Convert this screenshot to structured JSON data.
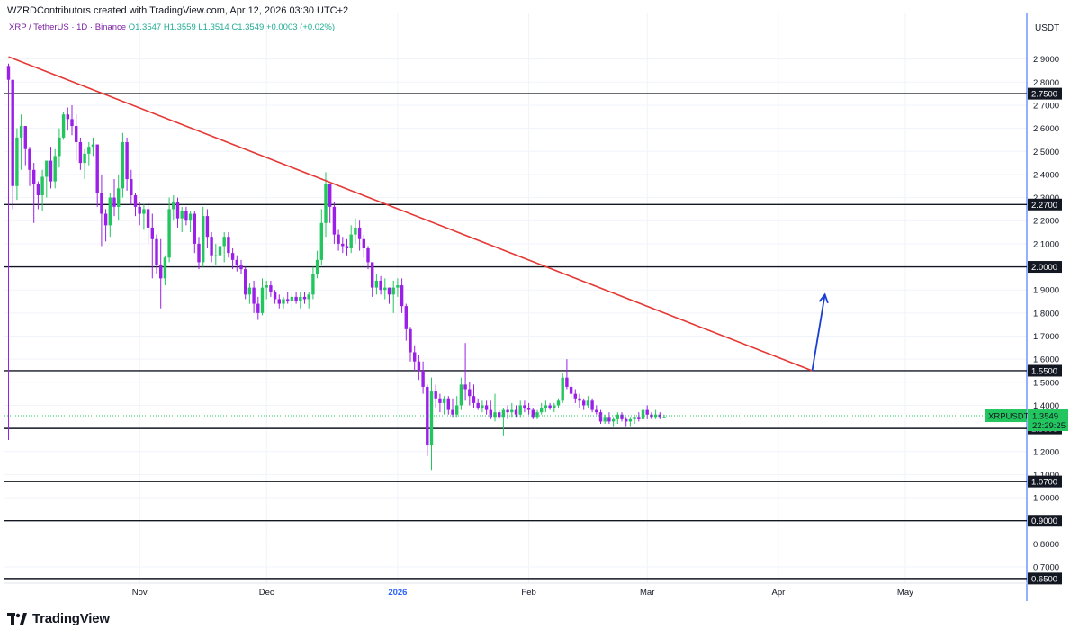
{
  "header": {
    "credit": "WZRDContributors created with TradingView.com, Apr 12, 2026 03:30 UTC+2"
  },
  "legend": {
    "symbol": "XRP / TetherUS · 1D · Binance",
    "open": "O1.3547",
    "high": "H1.3559",
    "low": "L1.3514",
    "close": "C1.3549",
    "change": "+0.0003 (+0.02%)"
  },
  "price_scale": {
    "currency": "USDT"
  },
  "brand": {
    "name": "TradingView",
    "icon": "tradingview-logo-icon"
  },
  "colors": {
    "up": "#22c55e",
    "down": "#9b1fe8",
    "trendline": "#e53935",
    "arrow": "#1a3fd0",
    "level": "#131722",
    "current_tag": "#22c55e"
  },
  "chart_data": {
    "type": "candlestick",
    "symbol": "XRPUSDT",
    "timeframe": "1D",
    "ylim": [
      0.63,
      3.0
    ],
    "y_ticks": [
      "0.7000",
      "0.8000",
      "0.9000",
      "1.0000",
      "1.1000",
      "1.2000",
      "1.3000",
      "1.4000",
      "1.5000",
      "1.6000",
      "1.7000",
      "1.8000",
      "1.9000",
      "2.0000",
      "2.1000",
      "2.2000",
      "2.3000",
      "2.4000",
      "2.5000",
      "2.6000",
      "2.7000",
      "2.8000",
      "2.9000"
    ],
    "x_ticks": [
      {
        "label": "Nov",
        "day": 31
      },
      {
        "label": "Dec",
        "day": 61
      },
      {
        "label": "2026",
        "day": 92
      },
      {
        "label": "Feb",
        "day": 123
      },
      {
        "label": "Mar",
        "day": 151
      },
      {
        "label": "Apr",
        "day": 182
      },
      {
        "label": "May",
        "day": 212
      }
    ],
    "horizontal_levels": [
      "2.7500",
      "2.2700",
      "2.0000",
      "1.5500",
      "1.3000",
      "1.0700",
      "0.9000",
      "0.6500"
    ],
    "current_price": {
      "label": "XRPUSDT",
      "value": "1.3549",
      "countdown": "22:29:25"
    },
    "trendline": {
      "from": {
        "day": 0,
        "price": 2.91
      },
      "to": {
        "day": 190,
        "price": 1.55
      }
    },
    "projection_arrow": {
      "from": {
        "day": 190,
        "price": 1.55
      },
      "to": {
        "day": 193,
        "price": 1.88
      }
    },
    "candles": [
      [
        2.87,
        2.88,
        1.25,
        2.81
      ],
      [
        2.81,
        2.81,
        2.25,
        2.35
      ],
      [
        2.35,
        2.6,
        2.29,
        2.56
      ],
      [
        2.56,
        2.66,
        2.42,
        2.61
      ],
      [
        2.61,
        2.61,
        2.44,
        2.51
      ],
      [
        2.51,
        2.52,
        2.35,
        2.42
      ],
      [
        2.42,
        2.45,
        2.19,
        2.36
      ],
      [
        2.36,
        2.37,
        2.25,
        2.31
      ],
      [
        2.31,
        2.42,
        2.24,
        2.39
      ],
      [
        2.39,
        2.45,
        2.3,
        2.46
      ],
      [
        2.46,
        2.52,
        2.34,
        2.37
      ],
      [
        2.37,
        2.51,
        2.34,
        2.48
      ],
      [
        2.48,
        2.6,
        2.43,
        2.56
      ],
      [
        2.56,
        2.67,
        2.55,
        2.66
      ],
      [
        2.66,
        2.69,
        2.59,
        2.64
      ],
      [
        2.64,
        2.7,
        2.57,
        2.61
      ],
      [
        2.61,
        2.66,
        2.46,
        2.54
      ],
      [
        2.54,
        2.56,
        2.42,
        2.45
      ],
      [
        2.45,
        2.51,
        2.38,
        2.49
      ],
      [
        2.49,
        2.54,
        2.44,
        2.52
      ],
      [
        2.52,
        2.56,
        2.48,
        2.53
      ],
      [
        2.53,
        2.53,
        2.26,
        2.32
      ],
      [
        2.32,
        2.4,
        2.09,
        2.23
      ],
      [
        2.23,
        2.25,
        2.11,
        2.18
      ],
      [
        2.18,
        2.32,
        2.13,
        2.3
      ],
      [
        2.3,
        2.38,
        2.22,
        2.26
      ],
      [
        2.26,
        2.4,
        2.2,
        2.34
      ],
      [
        2.34,
        2.58,
        2.3,
        2.54
      ],
      [
        2.54,
        2.56,
        2.33,
        2.38
      ],
      [
        2.38,
        2.42,
        2.27,
        2.31
      ],
      [
        2.31,
        2.32,
        2.22,
        2.26
      ],
      [
        2.26,
        2.28,
        2.18,
        2.23
      ],
      [
        2.23,
        2.27,
        2.16,
        2.25
      ],
      [
        2.25,
        2.28,
        2.1,
        2.17
      ],
      [
        2.17,
        2.23,
        1.95,
        2.12
      ],
      [
        2.12,
        2.14,
        1.97,
        2.01
      ],
      [
        2.01,
        2.12,
        1.82,
        1.95
      ],
      [
        1.95,
        2.05,
        1.92,
        2.04
      ],
      [
        2.04,
        2.3,
        2.02,
        2.25
      ],
      [
        2.25,
        2.31,
        2.2,
        2.28
      ],
      [
        2.28,
        2.3,
        2.17,
        2.21
      ],
      [
        2.21,
        2.26,
        2.15,
        2.24
      ],
      [
        2.24,
        2.26,
        2.18,
        2.2
      ],
      [
        2.2,
        2.24,
        2.15,
        2.23
      ],
      [
        2.23,
        2.24,
        2.06,
        2.1
      ],
      [
        2.1,
        2.13,
        1.99,
        2.02
      ],
      [
        2.02,
        2.26,
        2.0,
        2.22
      ],
      [
        2.22,
        2.25,
        2.08,
        2.13
      ],
      [
        2.13,
        2.15,
        2.02,
        2.05
      ],
      [
        2.05,
        2.1,
        2.01,
        2.05
      ],
      [
        2.05,
        2.11,
        2.02,
        2.09
      ],
      [
        2.09,
        2.15,
        2.02,
        2.13
      ],
      [
        2.13,
        2.15,
        2.04,
        2.06
      ],
      [
        2.06,
        2.08,
        1.99,
        2.03
      ],
      [
        2.03,
        2.05,
        1.98,
        2.01
      ],
      [
        2.01,
        2.03,
        1.97,
        1.99
      ],
      [
        1.99,
        2.0,
        1.86,
        1.88
      ],
      [
        1.88,
        1.93,
        1.84,
        1.91
      ],
      [
        1.91,
        1.94,
        1.8,
        1.84
      ],
      [
        1.84,
        1.87,
        1.77,
        1.8
      ],
      [
        1.8,
        1.95,
        1.79,
        1.91
      ],
      [
        1.91,
        1.94,
        1.86,
        1.92
      ],
      [
        1.92,
        1.94,
        1.87,
        1.89
      ],
      [
        1.89,
        1.9,
        1.84,
        1.86
      ],
      [
        1.86,
        1.88,
        1.82,
        1.84
      ],
      [
        1.84,
        1.87,
        1.82,
        1.86
      ],
      [
        1.86,
        1.89,
        1.84,
        1.85
      ],
      [
        1.85,
        1.89,
        1.82,
        1.87
      ],
      [
        1.87,
        1.89,
        1.84,
        1.85
      ],
      [
        1.85,
        1.89,
        1.82,
        1.87
      ],
      [
        1.87,
        1.89,
        1.84,
        1.86
      ],
      [
        1.86,
        1.89,
        1.82,
        1.88
      ],
      [
        1.88,
        2.0,
        1.86,
        1.97
      ],
      [
        1.97,
        2.07,
        1.95,
        2.03
      ],
      [
        2.03,
        2.25,
        2.01,
        2.19
      ],
      [
        2.19,
        2.41,
        2.13,
        2.36
      ],
      [
        2.36,
        2.36,
        2.19,
        2.26
      ],
      [
        2.26,
        2.28,
        2.1,
        2.14
      ],
      [
        2.14,
        2.16,
        2.07,
        2.1
      ],
      [
        2.1,
        2.13,
        2.06,
        2.09
      ],
      [
        2.09,
        2.12,
        2.05,
        2.08
      ],
      [
        2.08,
        2.18,
        2.06,
        2.14
      ],
      [
        2.14,
        2.21,
        2.1,
        2.17
      ],
      [
        2.17,
        2.2,
        2.07,
        2.12
      ],
      [
        2.12,
        2.14,
        2.04,
        2.08
      ],
      [
        2.08,
        2.09,
        1.99,
        2.02
      ],
      [
        2.02,
        2.02,
        1.87,
        1.91
      ],
      [
        1.91,
        1.97,
        1.88,
        1.94
      ],
      [
        1.94,
        1.96,
        1.88,
        1.9
      ],
      [
        1.9,
        1.95,
        1.86,
        1.91
      ],
      [
        1.91,
        1.91,
        1.84,
        1.88
      ],
      [
        1.88,
        1.94,
        1.8,
        1.91
      ],
      [
        1.91,
        1.95,
        1.87,
        1.92
      ],
      [
        1.92,
        1.95,
        1.8,
        1.83
      ],
      [
        1.83,
        1.84,
        1.68,
        1.73
      ],
      [
        1.73,
        1.74,
        1.59,
        1.63
      ],
      [
        1.63,
        1.66,
        1.55,
        1.59
      ],
      [
        1.59,
        1.62,
        1.51,
        1.55
      ],
      [
        1.55,
        1.59,
        1.45,
        1.48
      ],
      [
        1.48,
        1.49,
        1.18,
        1.23
      ],
      [
        1.23,
        1.52,
        1.12,
        1.46
      ],
      [
        1.46,
        1.49,
        1.39,
        1.43
      ],
      [
        1.43,
        1.45,
        1.37,
        1.41
      ],
      [
        1.41,
        1.44,
        1.36,
        1.43
      ],
      [
        1.43,
        1.44,
        1.36,
        1.38
      ],
      [
        1.38,
        1.43,
        1.35,
        1.36
      ],
      [
        1.36,
        1.44,
        1.35,
        1.4
      ],
      [
        1.4,
        1.52,
        1.38,
        1.49
      ],
      [
        1.49,
        1.67,
        1.42,
        1.47
      ],
      [
        1.47,
        1.5,
        1.4,
        1.44
      ],
      [
        1.44,
        1.49,
        1.39,
        1.41
      ],
      [
        1.41,
        1.43,
        1.38,
        1.39
      ],
      [
        1.39,
        1.42,
        1.37,
        1.4
      ],
      [
        1.4,
        1.42,
        1.36,
        1.38
      ],
      [
        1.38,
        1.42,
        1.34,
        1.35
      ],
      [
        1.35,
        1.45,
        1.33,
        1.37
      ],
      [
        1.37,
        1.38,
        1.34,
        1.35
      ],
      [
        1.35,
        1.39,
        1.27,
        1.38
      ],
      [
        1.38,
        1.4,
        1.34,
        1.37
      ],
      [
        1.37,
        1.41,
        1.35,
        1.38
      ],
      [
        1.38,
        1.4,
        1.35,
        1.36
      ],
      [
        1.36,
        1.42,
        1.35,
        1.4
      ],
      [
        1.4,
        1.42,
        1.37,
        1.39
      ],
      [
        1.39,
        1.41,
        1.36,
        1.38
      ],
      [
        1.38,
        1.39,
        1.34,
        1.35
      ],
      [
        1.35,
        1.38,
        1.34,
        1.37
      ],
      [
        1.37,
        1.41,
        1.36,
        1.39
      ],
      [
        1.39,
        1.42,
        1.37,
        1.4
      ],
      [
        1.4,
        1.41,
        1.38,
        1.39
      ],
      [
        1.39,
        1.41,
        1.37,
        1.4
      ],
      [
        1.4,
        1.43,
        1.39,
        1.42
      ],
      [
        1.42,
        1.54,
        1.41,
        1.52
      ],
      [
        1.52,
        1.6,
        1.47,
        1.48
      ],
      [
        1.48,
        1.5,
        1.43,
        1.45
      ],
      [
        1.45,
        1.47,
        1.41,
        1.43
      ],
      [
        1.43,
        1.45,
        1.39,
        1.42
      ],
      [
        1.42,
        1.43,
        1.38,
        1.4
      ],
      [
        1.4,
        1.44,
        1.39,
        1.42
      ],
      [
        1.42,
        1.43,
        1.37,
        1.38
      ],
      [
        1.38,
        1.4,
        1.36,
        1.37
      ],
      [
        1.37,
        1.38,
        1.32,
        1.33
      ],
      [
        1.33,
        1.36,
        1.32,
        1.35
      ],
      [
        1.35,
        1.37,
        1.32,
        1.33
      ],
      [
        1.33,
        1.35,
        1.31,
        1.34
      ],
      [
        1.34,
        1.37,
        1.32,
        1.36
      ],
      [
        1.36,
        1.37,
        1.33,
        1.34
      ],
      [
        1.34,
        1.35,
        1.31,
        1.33
      ],
      [
        1.33,
        1.35,
        1.31,
        1.34
      ],
      [
        1.34,
        1.36,
        1.32,
        1.35
      ],
      [
        1.35,
        1.37,
        1.33,
        1.34
      ],
      [
        1.34,
        1.4,
        1.33,
        1.38
      ],
      [
        1.38,
        1.4,
        1.34,
        1.36
      ],
      [
        1.36,
        1.37,
        1.34,
        1.35
      ],
      [
        1.35,
        1.38,
        1.34,
        1.36
      ],
      [
        1.36,
        1.37,
        1.34,
        1.35
      ],
      [
        1.35,
        1.36,
        1.35,
        1.35
      ]
    ]
  }
}
